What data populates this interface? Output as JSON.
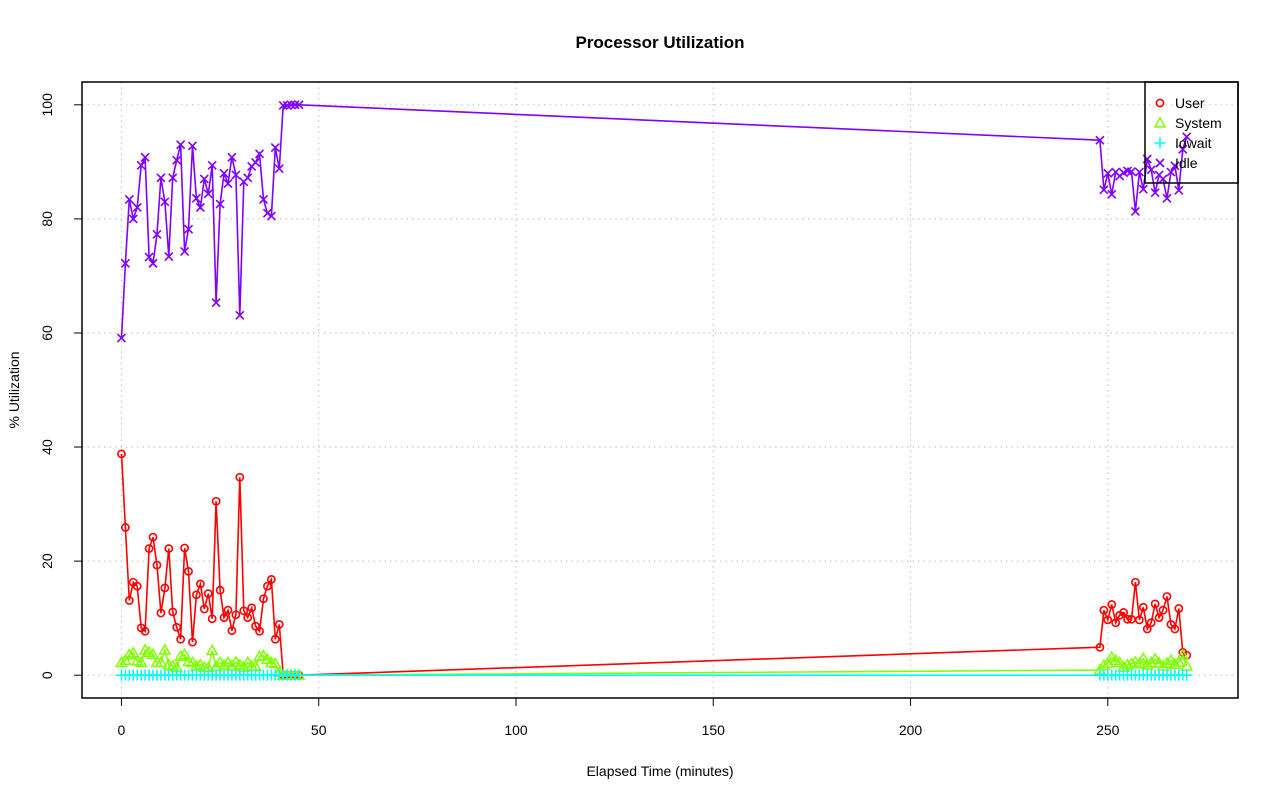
{
  "chart_data": {
    "type": "line",
    "title": "Processor Utilization",
    "xlabel": "Elapsed Time (minutes)",
    "ylabel": "% Utilization",
    "xlim": [
      -10,
      283
    ],
    "ylim": [
      -4,
      104
    ],
    "xticks": [
      0,
      50,
      100,
      150,
      200,
      250
    ],
    "yticks": [
      0,
      20,
      40,
      60,
      80,
      100
    ],
    "grid": true,
    "legend_position": "top-right",
    "x": [
      0,
      1,
      2,
      3,
      4,
      5,
      6,
      7,
      8,
      9,
      10,
      11,
      12,
      13,
      14,
      15,
      16,
      17,
      18,
      19,
      20,
      21,
      22,
      23,
      24,
      25,
      26,
      27,
      28,
      29,
      30,
      31,
      32,
      33,
      34,
      35,
      36,
      37,
      38,
      39,
      40,
      41,
      42,
      43,
      44,
      45,
      248,
      249,
      250,
      251,
      252,
      253,
      254,
      255,
      256,
      257,
      258,
      259,
      260,
      261,
      262,
      263,
      264,
      265,
      266,
      267,
      268,
      269,
      270
    ],
    "series": [
      {
        "name": "User",
        "color": "#ff0000",
        "marker": "circle",
        "values": [
          38.8,
          25.9,
          13.1,
          16.3,
          15.6,
          8.3,
          7.7,
          22.2,
          24.2,
          19.3,
          10.9,
          15.3,
          22.2,
          11.1,
          8.4,
          6.3,
          22.3,
          18.2,
          5.8,
          14.1,
          16.0,
          11.6,
          14.3,
          9.9,
          30.5,
          14.9,
          10.1,
          11.4,
          7.8,
          10.6,
          34.7,
          11.3,
          10.1,
          11.8,
          8.6,
          7.7,
          13.4,
          15.6,
          16.8,
          6.3,
          8.9,
          0.0,
          0.0,
          0.0,
          0.0,
          0.0,
          4.9,
          11.4,
          9.7,
          12.4,
          9.2,
          10.5,
          11.0,
          9.8,
          9.8,
          16.3,
          9.7,
          11.9,
          8.1,
          9.2,
          12.5,
          10.1,
          11.4,
          13.8,
          8.9,
          8.1,
          11.7,
          4.0,
          3.5
        ]
      },
      {
        "name": "System",
        "color": "#80ff00",
        "marker": "triangle",
        "values": [
          2.2,
          2.6,
          3.6,
          3.9,
          2.5,
          2.2,
          4.4,
          4.0,
          3.6,
          2.2,
          2.2,
          4.4,
          1.8,
          1.6,
          1.3,
          3.3,
          3.6,
          2.4,
          2.2,
          1.6,
          1.8,
          1.4,
          1.3,
          4.3,
          1.5,
          2.2,
          1.8,
          2.2,
          1.6,
          2.3,
          1.8,
          1.4,
          2.2,
          1.6,
          1.5,
          3.3,
          3.4,
          2.8,
          2.2,
          2.0,
          0.5,
          0.0,
          0.0,
          0.0,
          0.0,
          0.0,
          0.9,
          1.7,
          2.1,
          3.1,
          2.6,
          2.2,
          1.4,
          1.8,
          2.0,
          2.3,
          2.0,
          2.9,
          1.8,
          2.2,
          2.8,
          2.1,
          1.6,
          2.1,
          2.6,
          1.9,
          2.3,
          3.5,
          1.6
        ]
      },
      {
        "name": "Iowait",
        "color": "#00ffff",
        "marker": "plus",
        "values": [
          0,
          0,
          0,
          0,
          0,
          0,
          0,
          0,
          0,
          0,
          0,
          0,
          0,
          0,
          0,
          0,
          0,
          0,
          0,
          0,
          0,
          0,
          0,
          0,
          0,
          0,
          0,
          0,
          0,
          0,
          0,
          0,
          0,
          0,
          0,
          0,
          0,
          0,
          0,
          0,
          0,
          0,
          0,
          0,
          0,
          0,
          0,
          0,
          0,
          0,
          0,
          0,
          0,
          0,
          0,
          0,
          0,
          0,
          0,
          0,
          0,
          0,
          0,
          0,
          0,
          0,
          0,
          0,
          0
        ]
      },
      {
        "name": "Idle",
        "color": "#8000ff",
        "marker": "cross",
        "values": [
          59.1,
          72.2,
          83.4,
          80.0,
          82.0,
          89.4,
          90.8,
          73.3,
          72.2,
          77.3,
          87.2,
          83.0,
          73.4,
          87.2,
          90.3,
          93.0,
          74.3,
          78.2,
          92.8,
          83.6,
          82.0,
          87.0,
          84.4,
          89.4,
          65.3,
          82.6,
          88.0,
          86.2,
          90.8,
          87.7,
          63.1,
          86.5,
          87.2,
          89.2,
          89.9,
          91.4,
          83.4,
          81.0,
          80.5,
          92.5,
          88.8,
          99.9,
          99.9,
          100.0,
          100.0,
          100.0,
          93.8,
          85.1,
          88.0,
          84.3,
          88.2,
          87.5,
          88.1,
          88.4,
          88.3,
          81.3,
          88.2,
          85.2,
          90.5,
          88.6,
          84.6,
          87.7,
          87.0,
          83.6,
          88.2,
          89.3,
          85.0,
          92.2,
          94.4
        ]
      }
    ]
  }
}
